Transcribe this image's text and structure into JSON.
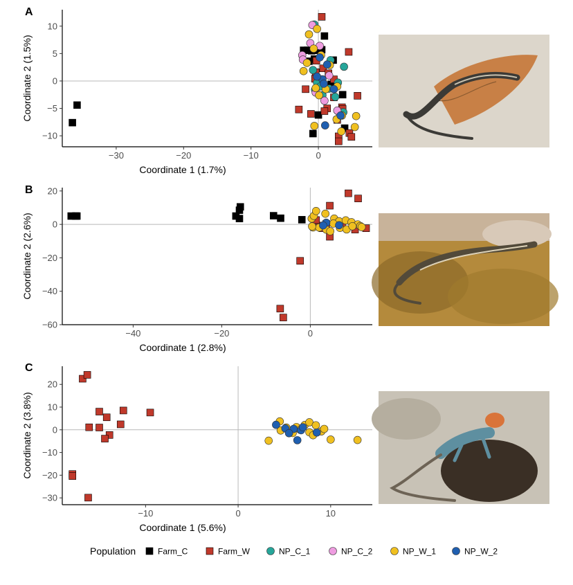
{
  "colors": {
    "Farm_C": "#000000",
    "Farm_W": "#c0392b",
    "NP_C_1": "#26a69a",
    "NP_C_2": "#ee9ce0",
    "NP_W_1": "#f0c020",
    "NP_W_2": "#1f5fb0"
  },
  "legend": {
    "title": "Population",
    "items": [
      {
        "name": "Farm_C",
        "shape": "square"
      },
      {
        "name": "Farm_W",
        "shape": "square"
      },
      {
        "name": "NP_C_1",
        "shape": "circle"
      },
      {
        "name": "NP_C_2",
        "shape": "circle"
      },
      {
        "name": "NP_W_1",
        "shape": "circle"
      },
      {
        "name": "NP_W_2",
        "shape": "circle"
      }
    ]
  },
  "photos": [
    {
      "subject": "skink-on-sand-photo"
    },
    {
      "subject": "skink-on-moss-photo"
    },
    {
      "subject": "dragon-lizard-photo"
    }
  ],
  "chart_data": [
    {
      "type": "scatter",
      "panel_label": "A",
      "xlabel": "Coordinate 1 (1.7%)",
      "ylabel": "Coordinate 2 (1.5%)",
      "xlim": [
        -38,
        8
      ],
      "ylim": [
        -12,
        13
      ],
      "xticks": [
        -30,
        -20,
        -10,
        0
      ],
      "yticks": [
        -10,
        -5,
        0,
        5,
        10
      ],
      "reference_lines": {
        "x": 0,
        "y": 0
      },
      "series": [
        {
          "name": "Farm_C",
          "points": [
            [
              -36.5,
              -7.6
            ],
            [
              -35.8,
              -4.4
            ],
            [
              -2.2,
              5.6
            ],
            [
              -1.6,
              5.6
            ],
            [
              -1.0,
              5.5
            ],
            [
              -0.5,
              5.6
            ],
            [
              0.0,
              5.6
            ],
            [
              0.5,
              5.7
            ],
            [
              -1.4,
              3.6
            ],
            [
              -0.6,
              4.0
            ],
            [
              0.9,
              8.2
            ],
            [
              2.2,
              3.8
            ],
            [
              3.6,
              -2.5
            ],
            [
              3.9,
              -8.6
            ],
            [
              2.4,
              -0.3
            ],
            [
              1.9,
              -0.6
            ],
            [
              -0.8,
              -9.6
            ],
            [
              0.0,
              -6.2
            ]
          ]
        },
        {
          "name": "Farm_W",
          "points": [
            [
              0.5,
              11.7
            ],
            [
              4.5,
              5.3
            ],
            [
              5.8,
              -2.7
            ],
            [
              -2.9,
              -5.2
            ],
            [
              -0.4,
              1.6
            ],
            [
              0.7,
              2.3
            ],
            [
              1.5,
              1.4
            ],
            [
              2.3,
              0.3
            ],
            [
              2.8,
              -7.1
            ],
            [
              3.0,
              -10.1
            ],
            [
              3.0,
              -11.0
            ],
            [
              4.6,
              -9.5
            ],
            [
              4.9,
              -10.2
            ],
            [
              3.5,
              -4.8
            ],
            [
              1.3,
              -5.0
            ],
            [
              -1.1,
              -6.0
            ],
            [
              0.9,
              -5.5
            ],
            [
              -0.3,
              3.7
            ],
            [
              -0.5,
              0.4
            ],
            [
              -1.9,
              -1.5
            ],
            [
              2.3,
              -3.0
            ],
            [
              3.6,
              -5.1
            ]
          ]
        },
        {
          "name": "NP_C_1",
          "points": [
            [
              -0.6,
              10.3
            ],
            [
              3.8,
              2.6
            ],
            [
              -0.2,
              -0.3
            ],
            [
              1.6,
              -1.4
            ],
            [
              3.7,
              -5.7
            ],
            [
              -0.8,
              2.0
            ],
            [
              0.6,
              -2.6
            ],
            [
              2.5,
              -2.9
            ],
            [
              -0.5,
              -1.6
            ],
            [
              1.8,
              3.8
            ],
            [
              2.9,
              -0.3
            ],
            [
              0.3,
              -1.0
            ]
          ]
        },
        {
          "name": "NP_C_2",
          "points": [
            [
              -0.9,
              10.2
            ],
            [
              -2.4,
              4.7
            ],
            [
              -2.3,
              3.9
            ],
            [
              0.2,
              6.4
            ],
            [
              -1.2,
              6.9
            ],
            [
              1.6,
              1.0
            ],
            [
              3.2,
              -6.2
            ],
            [
              2.8,
              -5.4
            ],
            [
              -0.4,
              -2.1
            ],
            [
              0.9,
              -3.6
            ]
          ]
        },
        {
          "name": "NP_W_1",
          "points": [
            [
              -0.2,
              9.5
            ],
            [
              -1.4,
              8.5
            ],
            [
              -0.7,
              5.9
            ],
            [
              -2.2,
              1.8
            ],
            [
              -1.7,
              3.3
            ],
            [
              0.4,
              4.7
            ],
            [
              1.7,
              2.9
            ],
            [
              2.8,
              -1.0
            ],
            [
              5.6,
              -6.4
            ],
            [
              5.4,
              -8.4
            ],
            [
              3.4,
              -9.2
            ],
            [
              -0.6,
              -8.2
            ],
            [
              -0.4,
              -1.3
            ],
            [
              1.1,
              -1.5
            ],
            [
              0.1,
              -2.6
            ],
            [
              2.7,
              -7.0
            ],
            [
              3.5,
              -6.3
            ]
          ]
        },
        {
          "name": "NP_W_2",
          "points": [
            [
              1.3,
              3.0
            ],
            [
              0.6,
              0.3
            ],
            [
              0.8,
              -0.5
            ],
            [
              1.0,
              -8.1
            ],
            [
              3.3,
              -6.3
            ],
            [
              2.3,
              -1.5
            ],
            [
              0.2,
              4.3
            ],
            [
              -0.2,
              0.8
            ]
          ]
        }
      ]
    },
    {
      "type": "scatter",
      "panel_label": "B",
      "xlabel": "Coordinate 1 (2.8%)",
      "ylabel": "Coordinate 2 (2.6%)",
      "xlim": [
        -56,
        14
      ],
      "ylim": [
        -60,
        22
      ],
      "xticks": [
        -40,
        -20,
        0
      ],
      "yticks": [
        -60,
        -40,
        -20,
        0,
        20
      ],
      "reference_lines": {
        "x": 0,
        "y": 0
      },
      "series": [
        {
          "name": "Farm_C",
          "points": [
            [
              -54,
              5
            ],
            [
              -53,
              5
            ],
            [
              -52.7,
              5
            ],
            [
              -16,
              8.5
            ],
            [
              -15.8,
              10.5
            ],
            [
              -16.8,
              5
            ],
            [
              -16,
              3.5
            ],
            [
              -8.3,
              5.2
            ],
            [
              -6.7,
              3.7
            ],
            [
              -1.9,
              2.8
            ]
          ]
        },
        {
          "name": "Farm_W",
          "points": [
            [
              8.6,
              18.6
            ],
            [
              10.8,
              15.5
            ],
            [
              4.4,
              11.2
            ],
            [
              12.6,
              -2.3
            ],
            [
              2.0,
              -0.7
            ],
            [
              3.6,
              0.3
            ],
            [
              -2.3,
              -21.8
            ],
            [
              -6.8,
              -50.4
            ],
            [
              -6.1,
              -55.7
            ],
            [
              4.4,
              -7.4
            ],
            [
              2.7,
              -2.3
            ],
            [
              7.2,
              -1.6
            ],
            [
              10.1,
              -3.1
            ],
            [
              1.3,
              2.6
            ]
          ]
        },
        {
          "name": "NP_W_1",
          "points": [
            [
              0.3,
              3.5
            ],
            [
              0.8,
              5.1
            ],
            [
              1.3,
              8.0
            ],
            [
              3.4,
              6.4
            ],
            [
              5.4,
              3.5
            ],
            [
              6.5,
              1.9
            ],
            [
              8.0,
              2.4
            ],
            [
              9.3,
              1.3
            ],
            [
              10.7,
              0.0
            ],
            [
              11.3,
              -1.0
            ],
            [
              0.6,
              -1.8
            ],
            [
              2.0,
              -1.9
            ],
            [
              3.6,
              -3.1
            ],
            [
              4.5,
              -4.1
            ],
            [
              6.7,
              -2.1
            ],
            [
              8.2,
              -3.0
            ],
            [
              9.5,
              -1.1
            ],
            [
              11.6,
              -1.6
            ],
            [
              0.4,
              -1.2
            ],
            [
              5.2,
              0.5
            ]
          ]
        },
        {
          "name": "NP_W_2",
          "points": [
            [
              3.6,
              1.0
            ],
            [
              2.9,
              -0.6
            ],
            [
              6.5,
              -0.5
            ]
          ]
        }
      ]
    },
    {
      "type": "scatter",
      "panel_label": "C",
      "xlabel": "Coordinate 1 (5.6%)",
      "ylabel": "Coordinate 2 (3.8%)",
      "xlim": [
        -19,
        14.5
      ],
      "ylim": [
        -33,
        28
      ],
      "xticks": [
        -10,
        0,
        10
      ],
      "yticks": [
        -30,
        -20,
        -10,
        0,
        10,
        20
      ],
      "reference_lines": {
        "x": 0,
        "y": 0
      },
      "series": [
        {
          "name": "Farm_W",
          "points": [
            [
              -16.8,
              22.5
            ],
            [
              -16.3,
              24.2
            ],
            [
              -17.9,
              -19.5
            ],
            [
              -17.9,
              -20.4
            ],
            [
              -16.2,
              -29.9
            ],
            [
              -15.0,
              8.0
            ],
            [
              -14.2,
              5.5
            ],
            [
              -13.9,
              -2.3
            ],
            [
              -14.4,
              -3.9
            ],
            [
              -15.0,
              1.0
            ],
            [
              -16.1,
              1.1
            ],
            [
              -12.4,
              8.5
            ],
            [
              -12.7,
              2.4
            ],
            [
              -9.5,
              7.6
            ]
          ]
        },
        {
          "name": "NP_W_1",
          "points": [
            [
              3.3,
              -4.8
            ],
            [
              4.5,
              3.7
            ],
            [
              5.2,
              1.0
            ],
            [
              5.9,
              -1.4
            ],
            [
              6.3,
              1.2
            ],
            [
              7.2,
              2.1
            ],
            [
              7.7,
              3.3
            ],
            [
              8.4,
              2.0
            ],
            [
              9.0,
              -0.7
            ],
            [
              9.3,
              0.4
            ],
            [
              10.0,
              -4.3
            ],
            [
              12.9,
              -4.5
            ],
            [
              6.7,
              0.0
            ],
            [
              7.7,
              -1.1
            ],
            [
              4.6,
              -0.3
            ],
            [
              8.1,
              -2.4
            ]
          ]
        },
        {
          "name": "NP_W_2",
          "points": [
            [
              4.1,
              2.2
            ],
            [
              5.1,
              0.6
            ],
            [
              6.0,
              0.4
            ],
            [
              6.8,
              -0.2
            ],
            [
              6.4,
              -4.6
            ],
            [
              7.0,
              1.1
            ],
            [
              8.5,
              -1.2
            ],
            [
              5.5,
              -1.5
            ]
          ]
        }
      ]
    }
  ]
}
